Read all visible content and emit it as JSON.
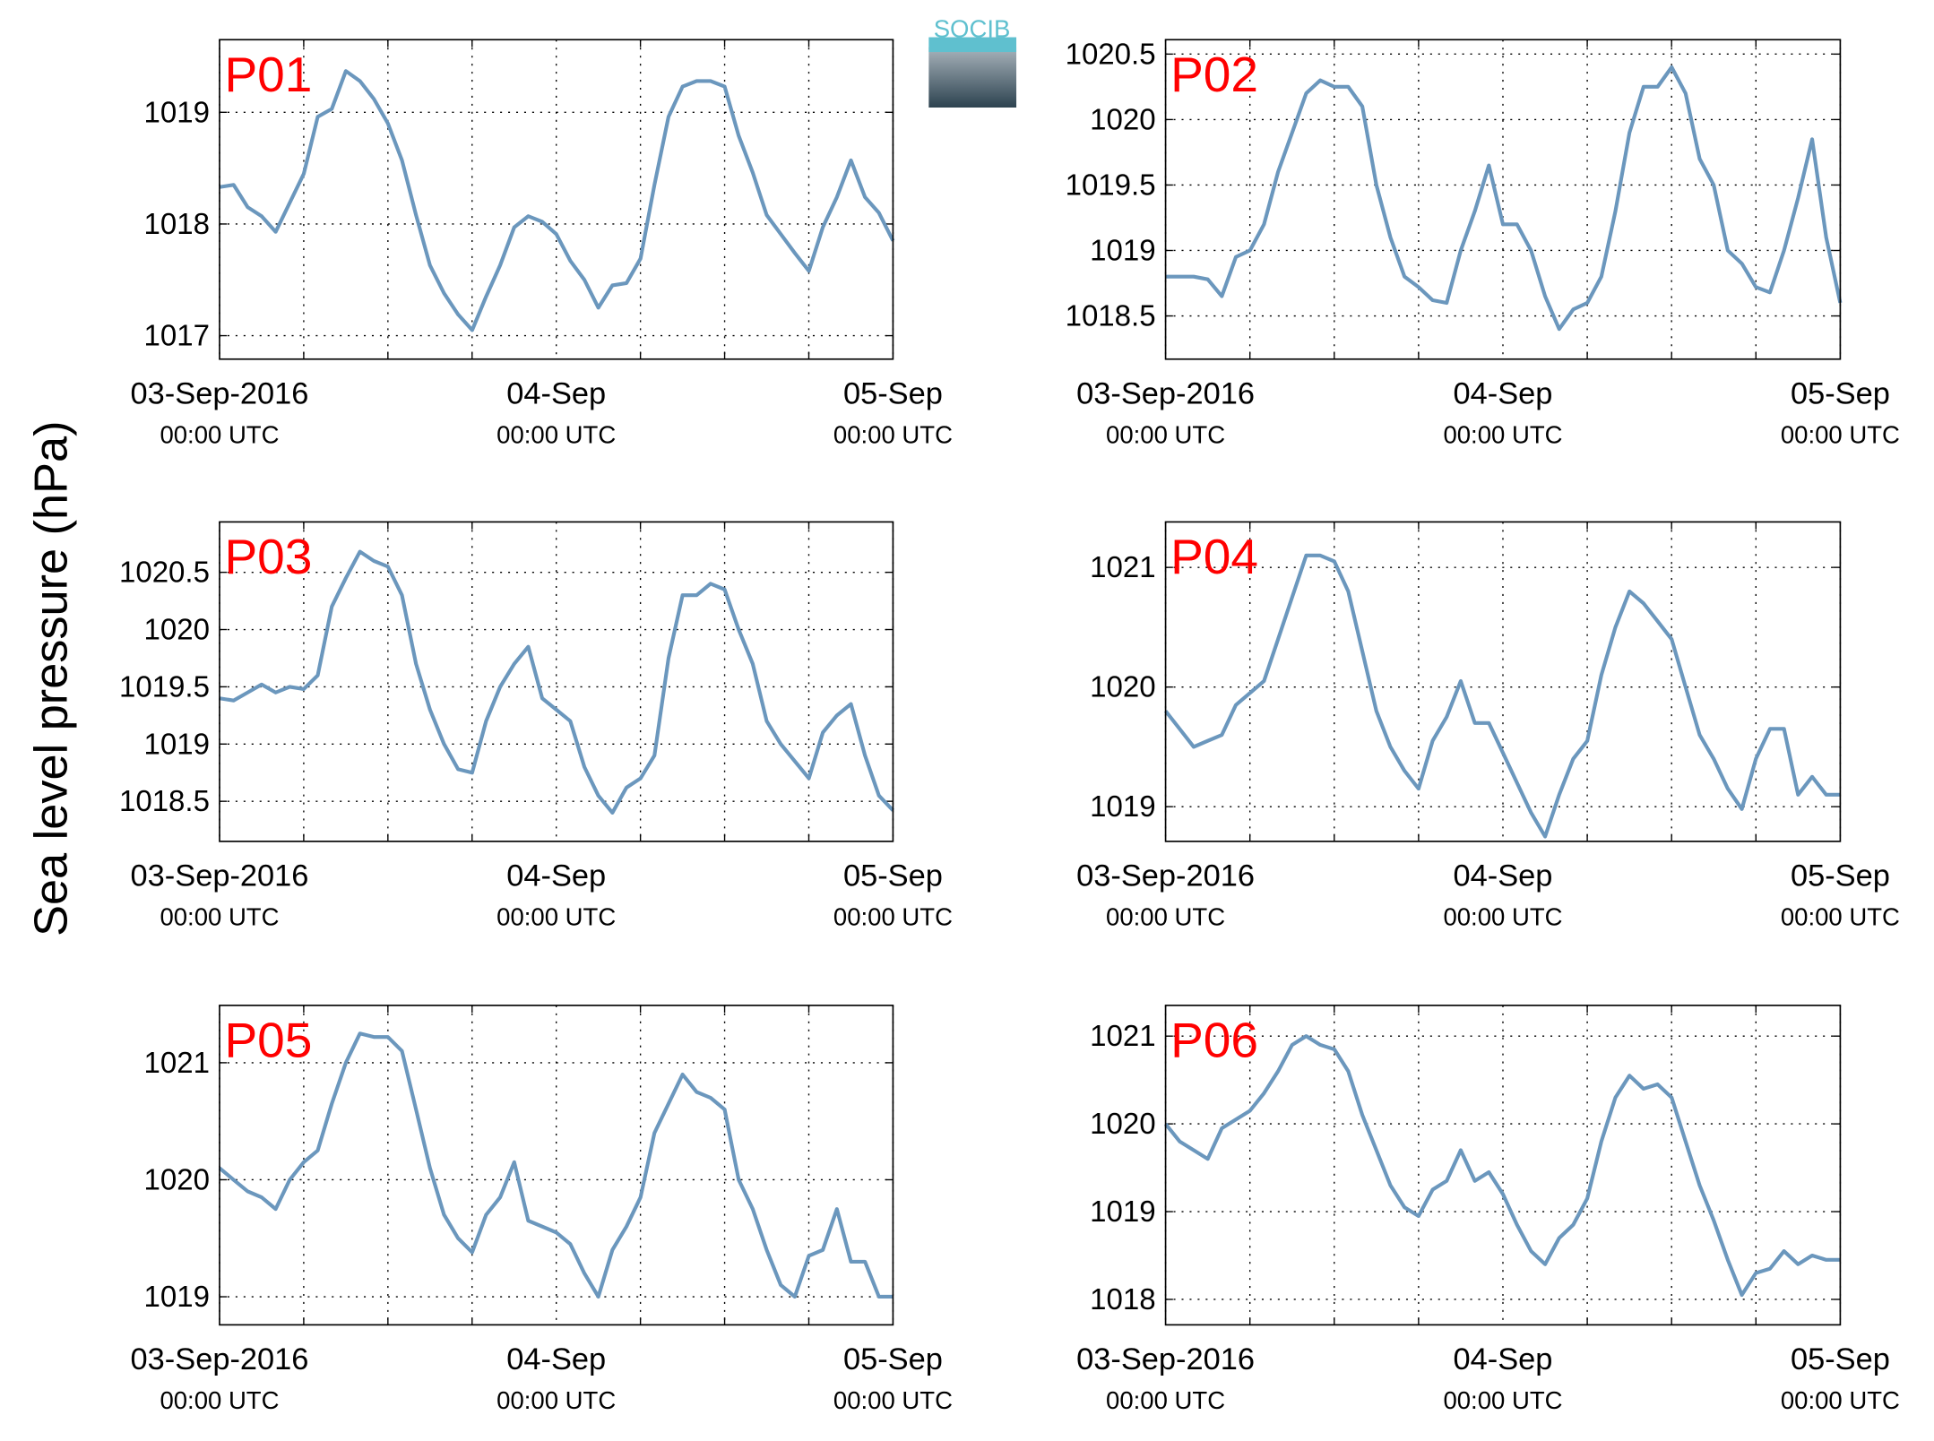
{
  "logo": "SOCIB",
  "ylabel": "Sea level pressure (hPa)",
  "chart_data": [
    {
      "type": "line",
      "title": "P01",
      "color": "#6b97bd",
      "title_color": "#ff0000",
      "x": [
        0,
        1,
        2,
        3,
        4,
        5,
        6,
        7,
        8,
        9,
        10,
        11,
        12,
        13,
        14,
        15,
        16,
        17,
        18,
        19,
        20,
        21,
        22,
        23,
        24,
        25,
        26,
        27,
        28,
        29,
        30,
        31,
        32,
        33,
        34,
        35,
        36,
        37,
        38,
        39,
        40,
        41,
        42,
        43,
        44,
        45,
        46,
        47,
        48
      ],
      "values": [
        1018.33,
        1018.35,
        1018.15,
        1018.07,
        1017.93,
        1018.19,
        1018.45,
        1018.96,
        1019.03,
        1019.37,
        1019.28,
        1019.12,
        1018.9,
        1018.57,
        1018.08,
        1017.63,
        1017.38,
        1017.19,
        1017.05,
        1017.35,
        1017.63,
        1017.97,
        1018.07,
        1018.02,
        1017.91,
        1017.67,
        1017.5,
        1017.25,
        1017.45,
        1017.47,
        1017.69,
        1018.35,
        1018.96,
        1019.23,
        1019.28,
        1019.28,
        1019.23,
        1018.79,
        1018.46,
        1018.08,
        1017.91,
        1017.74,
        1017.58,
        1017.97,
        1018.24,
        1018.57,
        1018.24,
        1018.1,
        1017.85
      ],
      "xlim": [
        0,
        48
      ],
      "xticks": [
        {
          "value": 0,
          "label": "03-Sep-2016",
          "sublabel": "00:00 UTC"
        },
        {
          "value": 24,
          "label": "04-Sep",
          "sublabel": "00:00 UTC"
        },
        {
          "value": 48,
          "label": "05-Sep",
          "sublabel": "00:00 UTC"
        }
      ],
      "xminor": [
        6,
        12,
        18,
        30,
        36,
        42
      ],
      "ylim": [
        1016.79,
        1019.65
      ],
      "yticks": [
        1017,
        1018,
        1019
      ],
      "grid": true
    },
    {
      "type": "line",
      "title": "P02",
      "color": "#6b97bd",
      "title_color": "#ff0000",
      "x": [
        0,
        1,
        2,
        3,
        4,
        5,
        6,
        7,
        8,
        9,
        10,
        11,
        12,
        13,
        14,
        15,
        16,
        17,
        18,
        19,
        20,
        21,
        22,
        23,
        24,
        25,
        26,
        27,
        28,
        29,
        30,
        31,
        32,
        33,
        34,
        35,
        36,
        37,
        38,
        39,
        40,
        41,
        42,
        43,
        44,
        45,
        46,
        47,
        48
      ],
      "values": [
        1018.8,
        1018.8,
        1018.8,
        1018.78,
        1018.65,
        1018.95,
        1019.0,
        1019.2,
        1019.6,
        1019.9,
        1020.2,
        1020.3,
        1020.25,
        1020.25,
        1020.1,
        1019.5,
        1019.1,
        1018.8,
        1018.72,
        1018.62,
        1018.6,
        1019.0,
        1019.3,
        1019.65,
        1019.2,
        1019.2,
        1019.0,
        1018.65,
        1018.4,
        1018.55,
        1018.6,
        1018.8,
        1019.3,
        1019.9,
        1020.25,
        1020.25,
        1020.4,
        1020.2,
        1019.7,
        1019.5,
        1019.0,
        1018.9,
        1018.72,
        1018.68,
        1019.0,
        1019.4,
        1019.85,
        1019.1,
        1018.6
      ],
      "xlim": [
        0,
        48
      ],
      "xticks": [
        {
          "value": 0,
          "label": "03-Sep-2016",
          "sublabel": "00:00 UTC"
        },
        {
          "value": 24,
          "label": "04-Sep",
          "sublabel": "00:00 UTC"
        },
        {
          "value": 48,
          "label": "05-Sep",
          "sublabel": "00:00 UTC"
        }
      ],
      "xminor": [
        6,
        12,
        18,
        30,
        36,
        42
      ],
      "ylim": [
        1018.17,
        1020.61
      ],
      "yticks": [
        1018.5,
        1019,
        1019.5,
        1020,
        1020.5
      ],
      "grid": true
    },
    {
      "type": "line",
      "title": "P03",
      "color": "#6b97bd",
      "title_color": "#ff0000",
      "x": [
        0,
        1,
        2,
        3,
        4,
        5,
        6,
        7,
        8,
        9,
        10,
        11,
        12,
        13,
        14,
        15,
        16,
        17,
        18,
        19,
        20,
        21,
        22,
        23,
        24,
        25,
        26,
        27,
        28,
        29,
        30,
        31,
        32,
        33,
        34,
        35,
        36,
        37,
        38,
        39,
        40,
        41,
        42,
        43,
        44,
        45,
        46,
        47,
        48
      ],
      "values": [
        1019.4,
        1019.38,
        1019.45,
        1019.52,
        1019.45,
        1019.5,
        1019.48,
        1019.6,
        1020.2,
        1020.45,
        1020.68,
        1020.6,
        1020.55,
        1020.3,
        1019.7,
        1019.3,
        1019.0,
        1018.78,
        1018.75,
        1019.2,
        1019.5,
        1019.7,
        1019.85,
        1019.4,
        1019.3,
        1019.2,
        1018.8,
        1018.55,
        1018.4,
        1018.62,
        1018.7,
        1018.9,
        1019.75,
        1020.3,
        1020.3,
        1020.4,
        1020.35,
        1020.0,
        1019.7,
        1019.2,
        1019.0,
        1018.85,
        1018.7,
        1019.1,
        1019.25,
        1019.35,
        1018.9,
        1018.55,
        1018.42
      ],
      "xlim": [
        0,
        48
      ],
      "xticks": [
        {
          "value": 0,
          "label": "03-Sep-2016",
          "sublabel": "00:00 UTC"
        },
        {
          "value": 24,
          "label": "04-Sep",
          "sublabel": "00:00 UTC"
        },
        {
          "value": 48,
          "label": "05-Sep",
          "sublabel": "00:00 UTC"
        }
      ],
      "xminor": [
        6,
        12,
        18,
        30,
        36,
        42
      ],
      "ylim": [
        1018.15,
        1020.94
      ],
      "yticks": [
        1018.5,
        1019,
        1019.5,
        1020,
        1020.5
      ],
      "grid": true
    },
    {
      "type": "line",
      "title": "P04",
      "color": "#6b97bd",
      "title_color": "#ff0000",
      "x": [
        0,
        1,
        2,
        3,
        4,
        5,
        6,
        7,
        8,
        9,
        10,
        11,
        12,
        13,
        14,
        15,
        16,
        17,
        18,
        19,
        20,
        21,
        22,
        23,
        24,
        25,
        26,
        27,
        28,
        29,
        30,
        31,
        32,
        33,
        34,
        35,
        36,
        37,
        38,
        39,
        40,
        41,
        42,
        43,
        44,
        45,
        46,
        47,
        48
      ],
      "values": [
        1019.8,
        1019.65,
        1019.5,
        1019.55,
        1019.6,
        1019.85,
        1019.95,
        1020.05,
        1020.4,
        1020.75,
        1021.1,
        1021.1,
        1021.05,
        1020.8,
        1020.3,
        1019.8,
        1019.5,
        1019.3,
        1019.15,
        1019.55,
        1019.75,
        1020.05,
        1019.7,
        1019.7,
        1019.45,
        1019.2,
        1018.95,
        1018.75,
        1019.1,
        1019.4,
        1019.55,
        1020.1,
        1020.5,
        1020.8,
        1020.7,
        1020.55,
        1020.4,
        1020.0,
        1019.6,
        1019.4,
        1019.15,
        1018.98,
        1019.4,
        1019.65,
        1019.65,
        1019.1,
        1019.25,
        1019.1,
        1019.1
      ],
      "xlim": [
        0,
        48
      ],
      "xticks": [
        {
          "value": 0,
          "label": "03-Sep-2016",
          "sublabel": "00:00 UTC"
        },
        {
          "value": 24,
          "label": "04-Sep",
          "sublabel": "00:00 UTC"
        },
        {
          "value": 48,
          "label": "05-Sep",
          "sublabel": "00:00 UTC"
        }
      ],
      "xminor": [
        6,
        12,
        18,
        30,
        36,
        42
      ],
      "ylim": [
        1018.71,
        1021.38
      ],
      "yticks": [
        1019,
        1020,
        1021
      ],
      "grid": true
    },
    {
      "type": "line",
      "title": "P05",
      "color": "#6b97bd",
      "title_color": "#ff0000",
      "x": [
        0,
        1,
        2,
        3,
        4,
        5,
        6,
        7,
        8,
        9,
        10,
        11,
        12,
        13,
        14,
        15,
        16,
        17,
        18,
        19,
        20,
        21,
        22,
        23,
        24,
        25,
        26,
        27,
        28,
        29,
        30,
        31,
        32,
        33,
        34,
        35,
        36,
        37,
        38,
        39,
        40,
        41,
        42,
        43,
        44,
        45,
        46,
        47,
        48
      ],
      "values": [
        1020.1,
        1020.0,
        1019.9,
        1019.85,
        1019.75,
        1020.0,
        1020.15,
        1020.25,
        1020.65,
        1021.0,
        1021.25,
        1021.22,
        1021.22,
        1021.1,
        1020.6,
        1020.1,
        1019.7,
        1019.5,
        1019.38,
        1019.7,
        1019.85,
        1020.15,
        1019.65,
        1019.6,
        1019.55,
        1019.45,
        1019.2,
        1019.0,
        1019.4,
        1019.6,
        1019.85,
        1020.4,
        1020.65,
        1020.9,
        1020.75,
        1020.7,
        1020.6,
        1020.0,
        1019.75,
        1019.4,
        1019.1,
        1019.0,
        1019.35,
        1019.4,
        1019.75,
        1019.3,
        1019.3,
        1019.0,
        1019.0
      ],
      "xlim": [
        0,
        48
      ],
      "xticks": [
        {
          "value": 0,
          "label": "03-Sep-2016",
          "sublabel": "00:00 UTC"
        },
        {
          "value": 24,
          "label": "04-Sep",
          "sublabel": "00:00 UTC"
        },
        {
          "value": 48,
          "label": "05-Sep",
          "sublabel": "00:00 UTC"
        }
      ],
      "xminor": [
        6,
        12,
        18,
        30,
        36,
        42
      ],
      "ylim": [
        1018.76,
        1021.49
      ],
      "yticks": [
        1019,
        1020,
        1021
      ],
      "grid": true
    },
    {
      "type": "line",
      "title": "P06",
      "color": "#6b97bd",
      "title_color": "#ff0000",
      "x": [
        0,
        1,
        2,
        3,
        4,
        5,
        6,
        7,
        8,
        9,
        10,
        11,
        12,
        13,
        14,
        15,
        16,
        17,
        18,
        19,
        20,
        21,
        22,
        23,
        24,
        25,
        26,
        27,
        28,
        29,
        30,
        31,
        32,
        33,
        34,
        35,
        36,
        37,
        38,
        39,
        40,
        41,
        42,
        43,
        44,
        45,
        46,
        47,
        48
      ],
      "values": [
        1020.0,
        1019.8,
        1019.7,
        1019.6,
        1019.95,
        1020.05,
        1020.15,
        1020.35,
        1020.6,
        1020.9,
        1021.0,
        1020.9,
        1020.85,
        1020.6,
        1020.1,
        1019.7,
        1019.3,
        1019.05,
        1018.95,
        1019.25,
        1019.35,
        1019.7,
        1019.35,
        1019.45,
        1019.2,
        1018.85,
        1018.55,
        1018.4,
        1018.7,
        1018.85,
        1019.15,
        1019.8,
        1020.3,
        1020.55,
        1020.4,
        1020.45,
        1020.3,
        1019.8,
        1019.3,
        1018.9,
        1018.45,
        1018.05,
        1018.3,
        1018.35,
        1018.55,
        1018.4,
        1018.5,
        1018.45,
        1018.45
      ],
      "xlim": [
        0,
        48
      ],
      "xticks": [
        {
          "value": 0,
          "label": "03-Sep-2016",
          "sublabel": "00:00 UTC"
        },
        {
          "value": 24,
          "label": "04-Sep",
          "sublabel": "00:00 UTC"
        },
        {
          "value": 48,
          "label": "05-Sep",
          "sublabel": "00:00 UTC"
        }
      ],
      "xminor": [
        6,
        12,
        18,
        30,
        36,
        42
      ],
      "ylim": [
        1017.71,
        1021.35
      ],
      "yticks": [
        1018,
        1019,
        1020,
        1021
      ],
      "grid": true
    }
  ]
}
